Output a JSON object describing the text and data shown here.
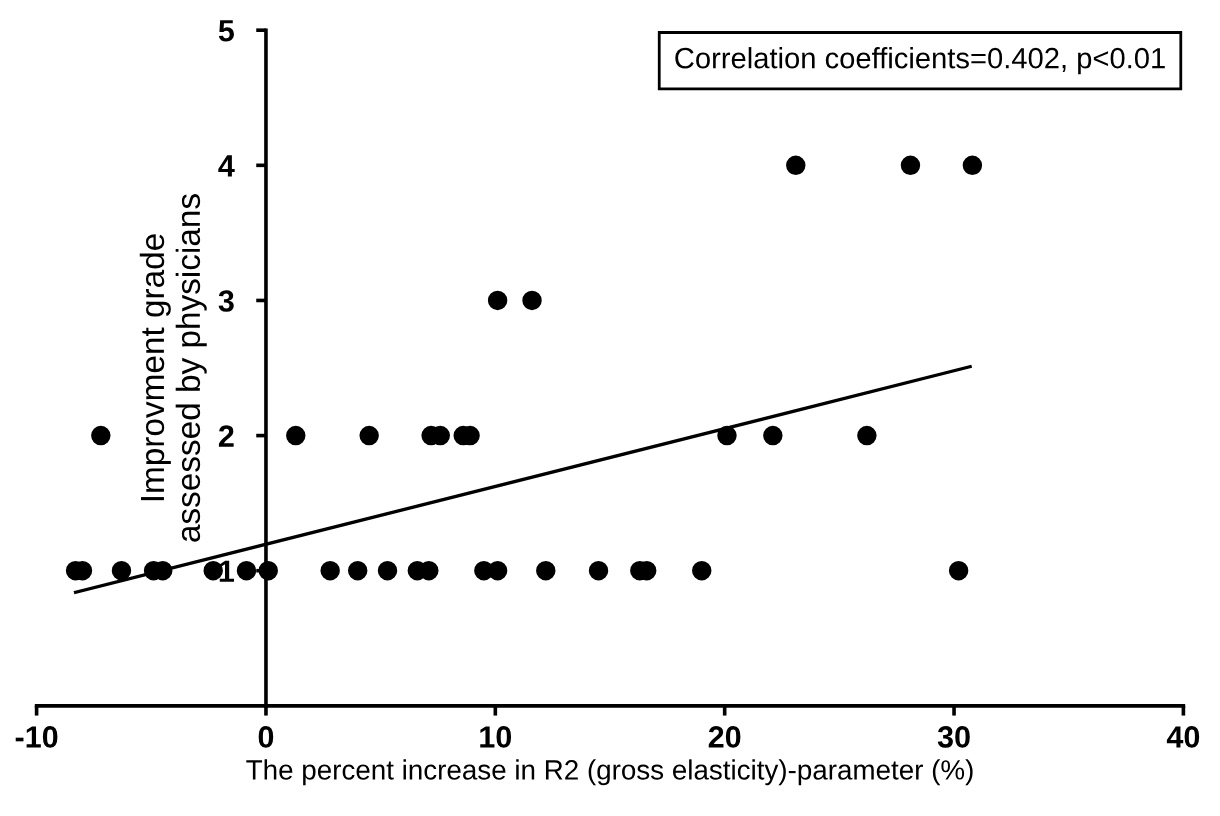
{
  "chart_data": {
    "type": "scatter",
    "xlabel": "The percent increase in R2 (gross elasticity)-parameter (%)",
    "ylabel": "Improvment grade\nassessed by physicians",
    "annotations": [
      "Correlation coefficients=0.402, p<0.01"
    ],
    "xlim": [
      -10,
      40
    ],
    "xticks": [
      -10,
      0,
      10,
      20,
      30,
      40
    ],
    "ylim": [
      0,
      5
    ],
    "yticks": [
      1,
      2,
      3,
      4,
      5
    ],
    "grid": false,
    "marker": "circle",
    "series": [
      {
        "color": "#000000",
        "x": [
          -8.3,
          -8.0,
          -6.3,
          -4.9,
          -4.5,
          -2.3,
          -0.85,
          0.1,
          2.8,
          4.0,
          5.3,
          6.6,
          7.1,
          9.5,
          10.1,
          12.2,
          14.5,
          16.3,
          16.6,
          19.0,
          30.2,
          -7.2,
          1.3,
          4.5,
          7.2,
          7.6,
          8.6,
          8.9,
          20.1,
          22.1,
          26.2,
          10.1,
          11.6,
          23.1,
          28.1,
          30.8
        ],
        "values": [
          1,
          1,
          1,
          1,
          1,
          1,
          1,
          1,
          1,
          1,
          1,
          1,
          1,
          1,
          1,
          1,
          1,
          1,
          1,
          1,
          1,
          2,
          2,
          2,
          2,
          2,
          2,
          2,
          2,
          2,
          2,
          3,
          3,
          4,
          4,
          4
        ]
      },
      {
        "type": "line",
        "color": "#000000",
        "marker": "none",
        "x": [
          -8.3,
          30.7
        ],
        "values": [
          0.84,
          2.51
        ]
      }
    ]
  }
}
